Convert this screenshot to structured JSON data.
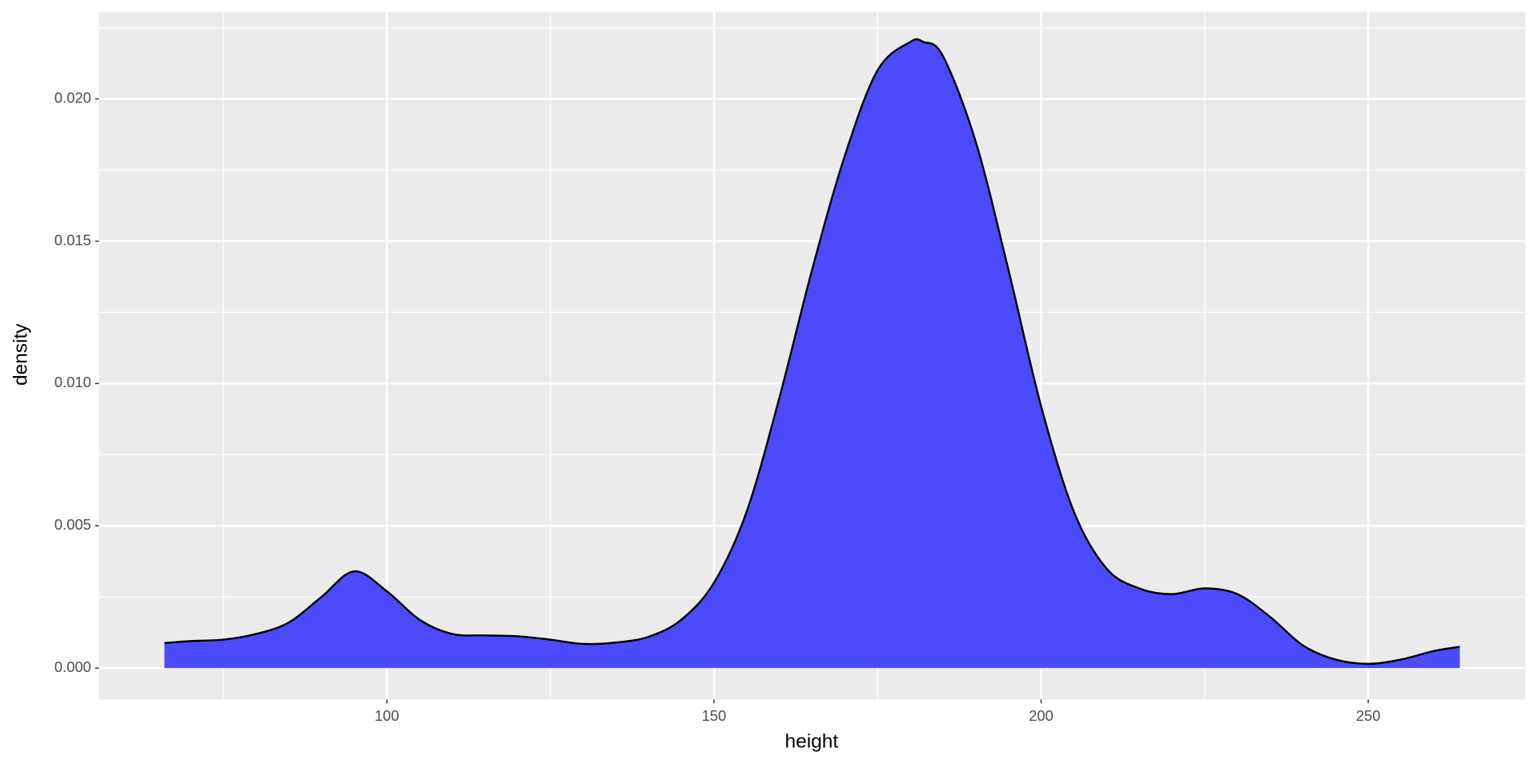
{
  "chart_data": {
    "type": "area",
    "x_label": "height",
    "y_label": "density",
    "x": [
      66,
      70,
      75,
      80,
      85,
      90,
      95,
      100,
      105,
      110,
      115,
      120,
      125,
      130,
      135,
      140,
      145,
      150,
      155,
      160,
      165,
      170,
      175,
      180,
      182,
      185,
      190,
      195,
      200,
      205,
      210,
      215,
      220,
      225,
      230,
      235,
      240,
      245,
      250,
      255,
      260,
      264
    ],
    "values": [
      0.00088,
      0.00095,
      0.001,
      0.0012,
      0.0016,
      0.0025,
      0.0034,
      0.0027,
      0.0017,
      0.0012,
      0.00115,
      0.00112,
      0.001,
      0.00085,
      0.0009,
      0.0011,
      0.0017,
      0.003,
      0.0055,
      0.0095,
      0.014,
      0.018,
      0.021,
      0.022,
      0.022,
      0.0215,
      0.0185,
      0.014,
      0.0092,
      0.0055,
      0.0035,
      0.0028,
      0.0026,
      0.0028,
      0.0026,
      0.0018,
      0.0008,
      0.0003,
      0.00015,
      0.0003,
      0.0006,
      0.00075
    ],
    "color": "#4b4bfb",
    "line_color": "#000000",
    "xlim": [
      56,
      274
    ],
    "ylim": [
      -0.0011,
      0.02306
    ],
    "xticks": [
      100,
      150,
      200,
      250
    ],
    "yticks": [
      {
        "value": 0,
        "label": "0.000"
      },
      {
        "value": 0.005,
        "label": "0.005"
      },
      {
        "value": 0.01,
        "label": "0.010"
      },
      {
        "value": 0.015,
        "label": "0.015"
      },
      {
        "value": 0.02,
        "label": "0.020"
      }
    ],
    "grid": true
  }
}
